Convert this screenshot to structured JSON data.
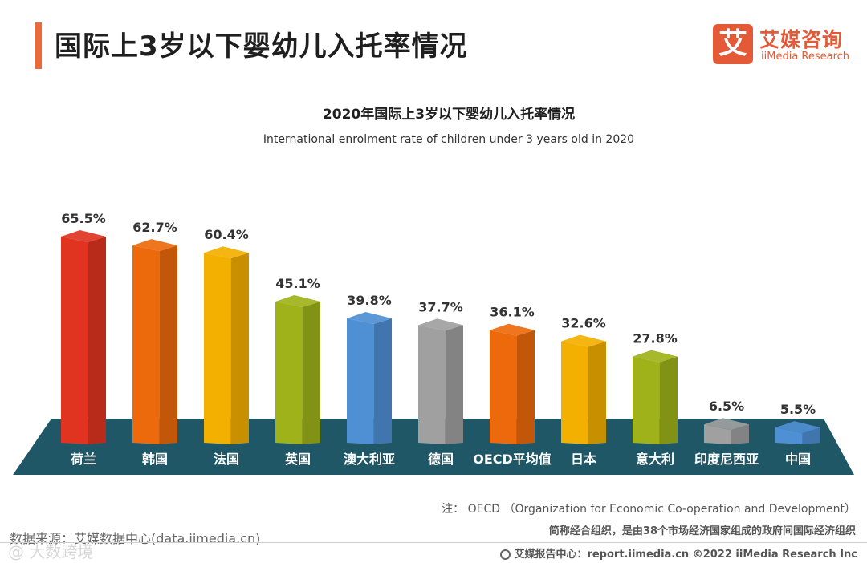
{
  "header": {
    "title": "国际上3岁以下婴幼儿入托率情况",
    "accent_color": "#ec6a3a"
  },
  "logo": {
    "mark": "艾",
    "cn": "艾媒咨询",
    "en": "iiMedia Research",
    "color": "#e55a36"
  },
  "chart_data": {
    "type": "bar",
    "title": "2020年国际上3岁以下婴幼儿入托率情况",
    "subtitle": "International enrolment rate of children under 3 years old in 2020",
    "categories": [
      "荷兰",
      "韩国",
      "法国",
      "英国",
      "澳大利亚",
      "德国",
      "OECD平均值",
      "日本",
      "意大利",
      "印度尼西亚",
      "中国"
    ],
    "values": [
      65.5,
      62.7,
      60.4,
      45.1,
      39.8,
      37.7,
      36.1,
      32.6,
      27.8,
      6.5,
      5.5
    ],
    "labels": [
      "65.5%",
      "62.7%",
      "60.4%",
      "45.1%",
      "39.8%",
      "37.7%",
      "36.1%",
      "32.6%",
      "27.8%",
      "6.5%",
      "5.5%"
    ],
    "colors": [
      "#e03421",
      "#ec6a0c",
      "#f4b000",
      "#9fb21a",
      "#4f8fd3",
      "#a0a0a0",
      "#ec6a0c",
      "#f4b000",
      "#9fb21a",
      "#a0a0a0",
      "#4f8fd3"
    ],
    "unit": "%",
    "ylim": [
      0,
      70
    ],
    "base_color": "#1f5767"
  },
  "notes": {
    "note": "注： OECD （Organization for Economic Co-operation and Development）",
    "note2": "简称经合组织，是由38个市场经济国家组成的政府间国际经济组织"
  },
  "source": "数据来源：艾媒数据中心(data.iimedia.cn)",
  "footer": "艾媒报告中心：report.iimedia.cn   ©2022  iiMedia Research  Inc",
  "watermark": "@ 大数跨境"
}
